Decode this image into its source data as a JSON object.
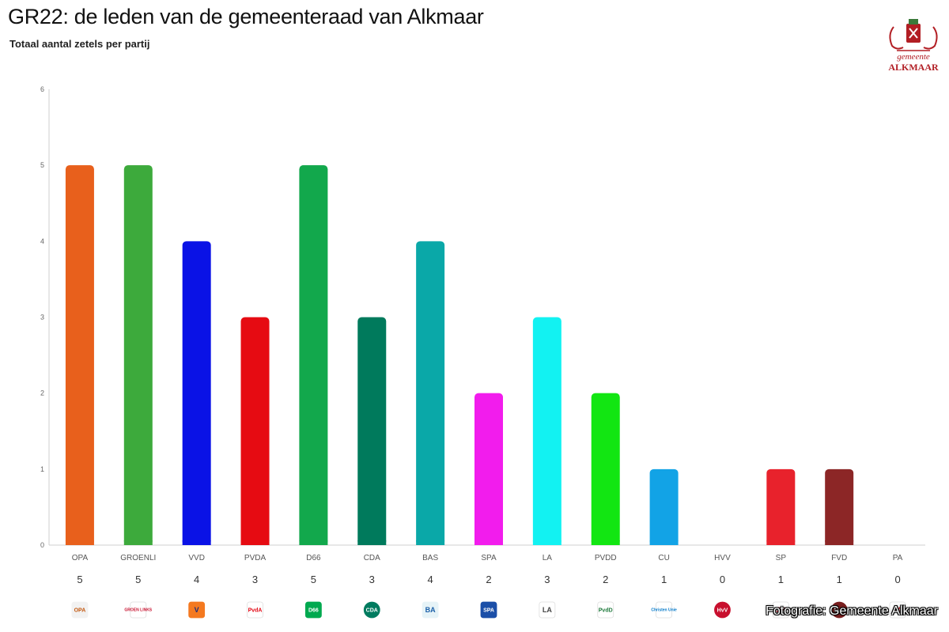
{
  "title": "GR22: de leden van de gemeenteraad van Alkmaar",
  "subtitle": "Totaal aantal zetels per partij",
  "logo": {
    "line1": "gemeente",
    "line2": "ALKMAAR"
  },
  "credit": "Fotografie: Gemeente Alkmaar",
  "chart_data": {
    "type": "bar",
    "title": "GR22: de leden van de gemeenteraad van Alkmaar",
    "subtitle": "Totaal aantal zetels per partij",
    "xlabel": "",
    "ylabel": "",
    "ylim": [
      0,
      6
    ],
    "yticks": [
      0,
      1,
      2,
      3,
      4,
      5,
      6
    ],
    "grid": false,
    "legend": "none",
    "categories": [
      "OPA",
      "GROENLI",
      "VVD",
      "PVDA",
      "D66",
      "CDA",
      "BAS",
      "SPA",
      "LA",
      "PVDD",
      "CU",
      "HVV",
      "SP",
      "FVD",
      "PA"
    ],
    "values": [
      5,
      5,
      4,
      3,
      5,
      3,
      4,
      2,
      3,
      2,
      1,
      0,
      1,
      1,
      0
    ],
    "colors": [
      "#e8601c",
      "#3daa3c",
      "#0a12e6",
      "#e60b12",
      "#12a84c",
      "#007a5c",
      "#0aa8a8",
      "#f21ced",
      "#12f2f2",
      "#12e612",
      "#12a3e6",
      "#cccccc",
      "#e8222c",
      "#8c2626",
      "#cccccc"
    ],
    "logos": [
      {
        "icon": "opa-logo-icon",
        "text": "OPA",
        "bg": "#f2f2f2",
        "fg": "#c45a12"
      },
      {
        "icon": "groenlinks-logo-icon",
        "text": "GROEN LINKS",
        "bg": "#ffffff",
        "fg": "#c8102e"
      },
      {
        "icon": "vvd-logo-icon",
        "text": "V",
        "bg": "#f47920",
        "fg": "#1b2c7a"
      },
      {
        "icon": "pvda-logo-icon",
        "text": "PvdA",
        "bg": "#ffffff",
        "fg": "#e30613"
      },
      {
        "icon": "d66-logo-icon",
        "text": "D66",
        "bg": "#00a94f",
        "fg": "#ffffff"
      },
      {
        "icon": "cda-logo-icon",
        "text": "CDA",
        "bg": "#007b5f",
        "fg": "#ffffff"
      },
      {
        "icon": "bas-logo-icon",
        "text": "BA",
        "bg": "#e6f3f7",
        "fg": "#1b5fa8"
      },
      {
        "icon": "spa-logo-icon",
        "text": "SPA",
        "bg": "#1b4fa8",
        "fg": "#ffffff"
      },
      {
        "icon": "la-logo-icon",
        "text": "LA",
        "bg": "#ffffff",
        "fg": "#444444"
      },
      {
        "icon": "pvdd-logo-icon",
        "text": "PvdD",
        "bg": "#ffffff",
        "fg": "#1f7a3c"
      },
      {
        "icon": "cu-logo-icon",
        "text": "Christen Unie",
        "bg": "#ffffff",
        "fg": "#0077c8"
      },
      {
        "icon": "hvv-logo-icon",
        "text": "HvV",
        "bg": "#c8102e",
        "fg": "#ffffff"
      },
      {
        "icon": "sp-logo-icon",
        "text": "SP",
        "bg": "#ffffff",
        "fg": "#e4001b"
      },
      {
        "icon": "fvd-logo-icon",
        "text": "FvD",
        "bg": "#7a1f1f",
        "fg": "#ffffff"
      },
      {
        "icon": "pa-logo-icon",
        "text": "PA",
        "bg": "#ffffff",
        "fg": "#d4141c"
      }
    ]
  }
}
